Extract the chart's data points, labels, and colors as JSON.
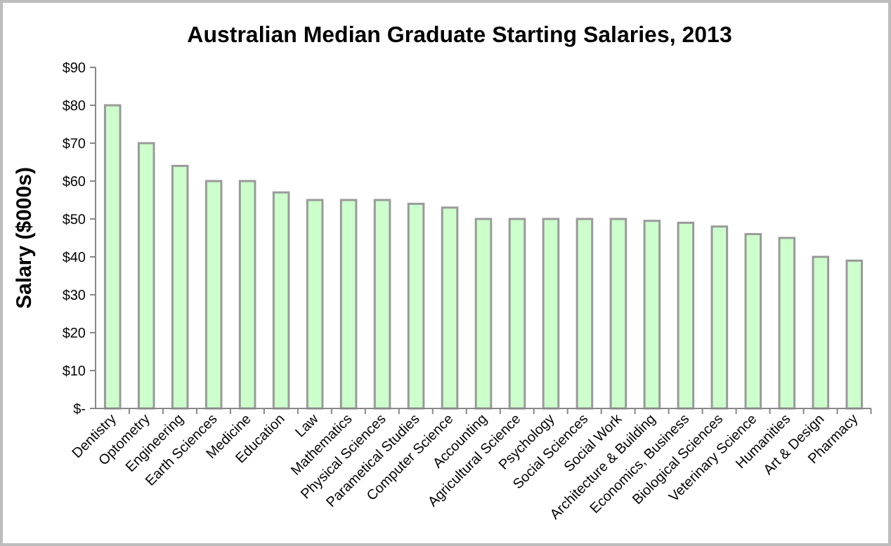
{
  "chart_data": {
    "type": "bar",
    "title": "Australian Median Graduate Starting Salaries, 2013",
    "ylabel": "Salary ($000s)",
    "categories": [
      "Dentistry",
      "Optometry",
      "Engineering",
      "Earth Sciences",
      "Medicine",
      "Education",
      "Law",
      "Mathematics",
      "Physical Sciences",
      "Parametical Studies",
      "Computer Science",
      "Accounting",
      "Agricultural Science",
      "Psychology",
      "Social Sciences",
      "Social Work",
      "Architecture & Building",
      "Economics, Business",
      "Biological Sciences",
      "Veterinary Science",
      "Humanities",
      "Art & Design",
      "Pharmacy"
    ],
    "values": [
      80,
      70,
      64,
      60,
      60,
      57,
      55,
      55,
      55,
      54,
      53,
      50,
      50,
      50,
      50,
      50,
      49.5,
      49,
      48,
      46,
      45,
      40,
      39
    ],
    "color": "#ccffcc",
    "ylim": [
      0,
      90
    ],
    "yticks": [
      {
        "value": 0,
        "label": "$-"
      },
      {
        "value": 10,
        "label": "$10"
      },
      {
        "value": 20,
        "label": "$20"
      },
      {
        "value": 30,
        "label": "$30"
      },
      {
        "value": 40,
        "label": "$40"
      },
      {
        "value": 50,
        "label": "$50"
      },
      {
        "value": 60,
        "label": "$60"
      },
      {
        "value": 70,
        "label": "$70"
      },
      {
        "value": 80,
        "label": "$80"
      },
      {
        "value": 90,
        "label": "$90"
      }
    ],
    "grid": false
  }
}
